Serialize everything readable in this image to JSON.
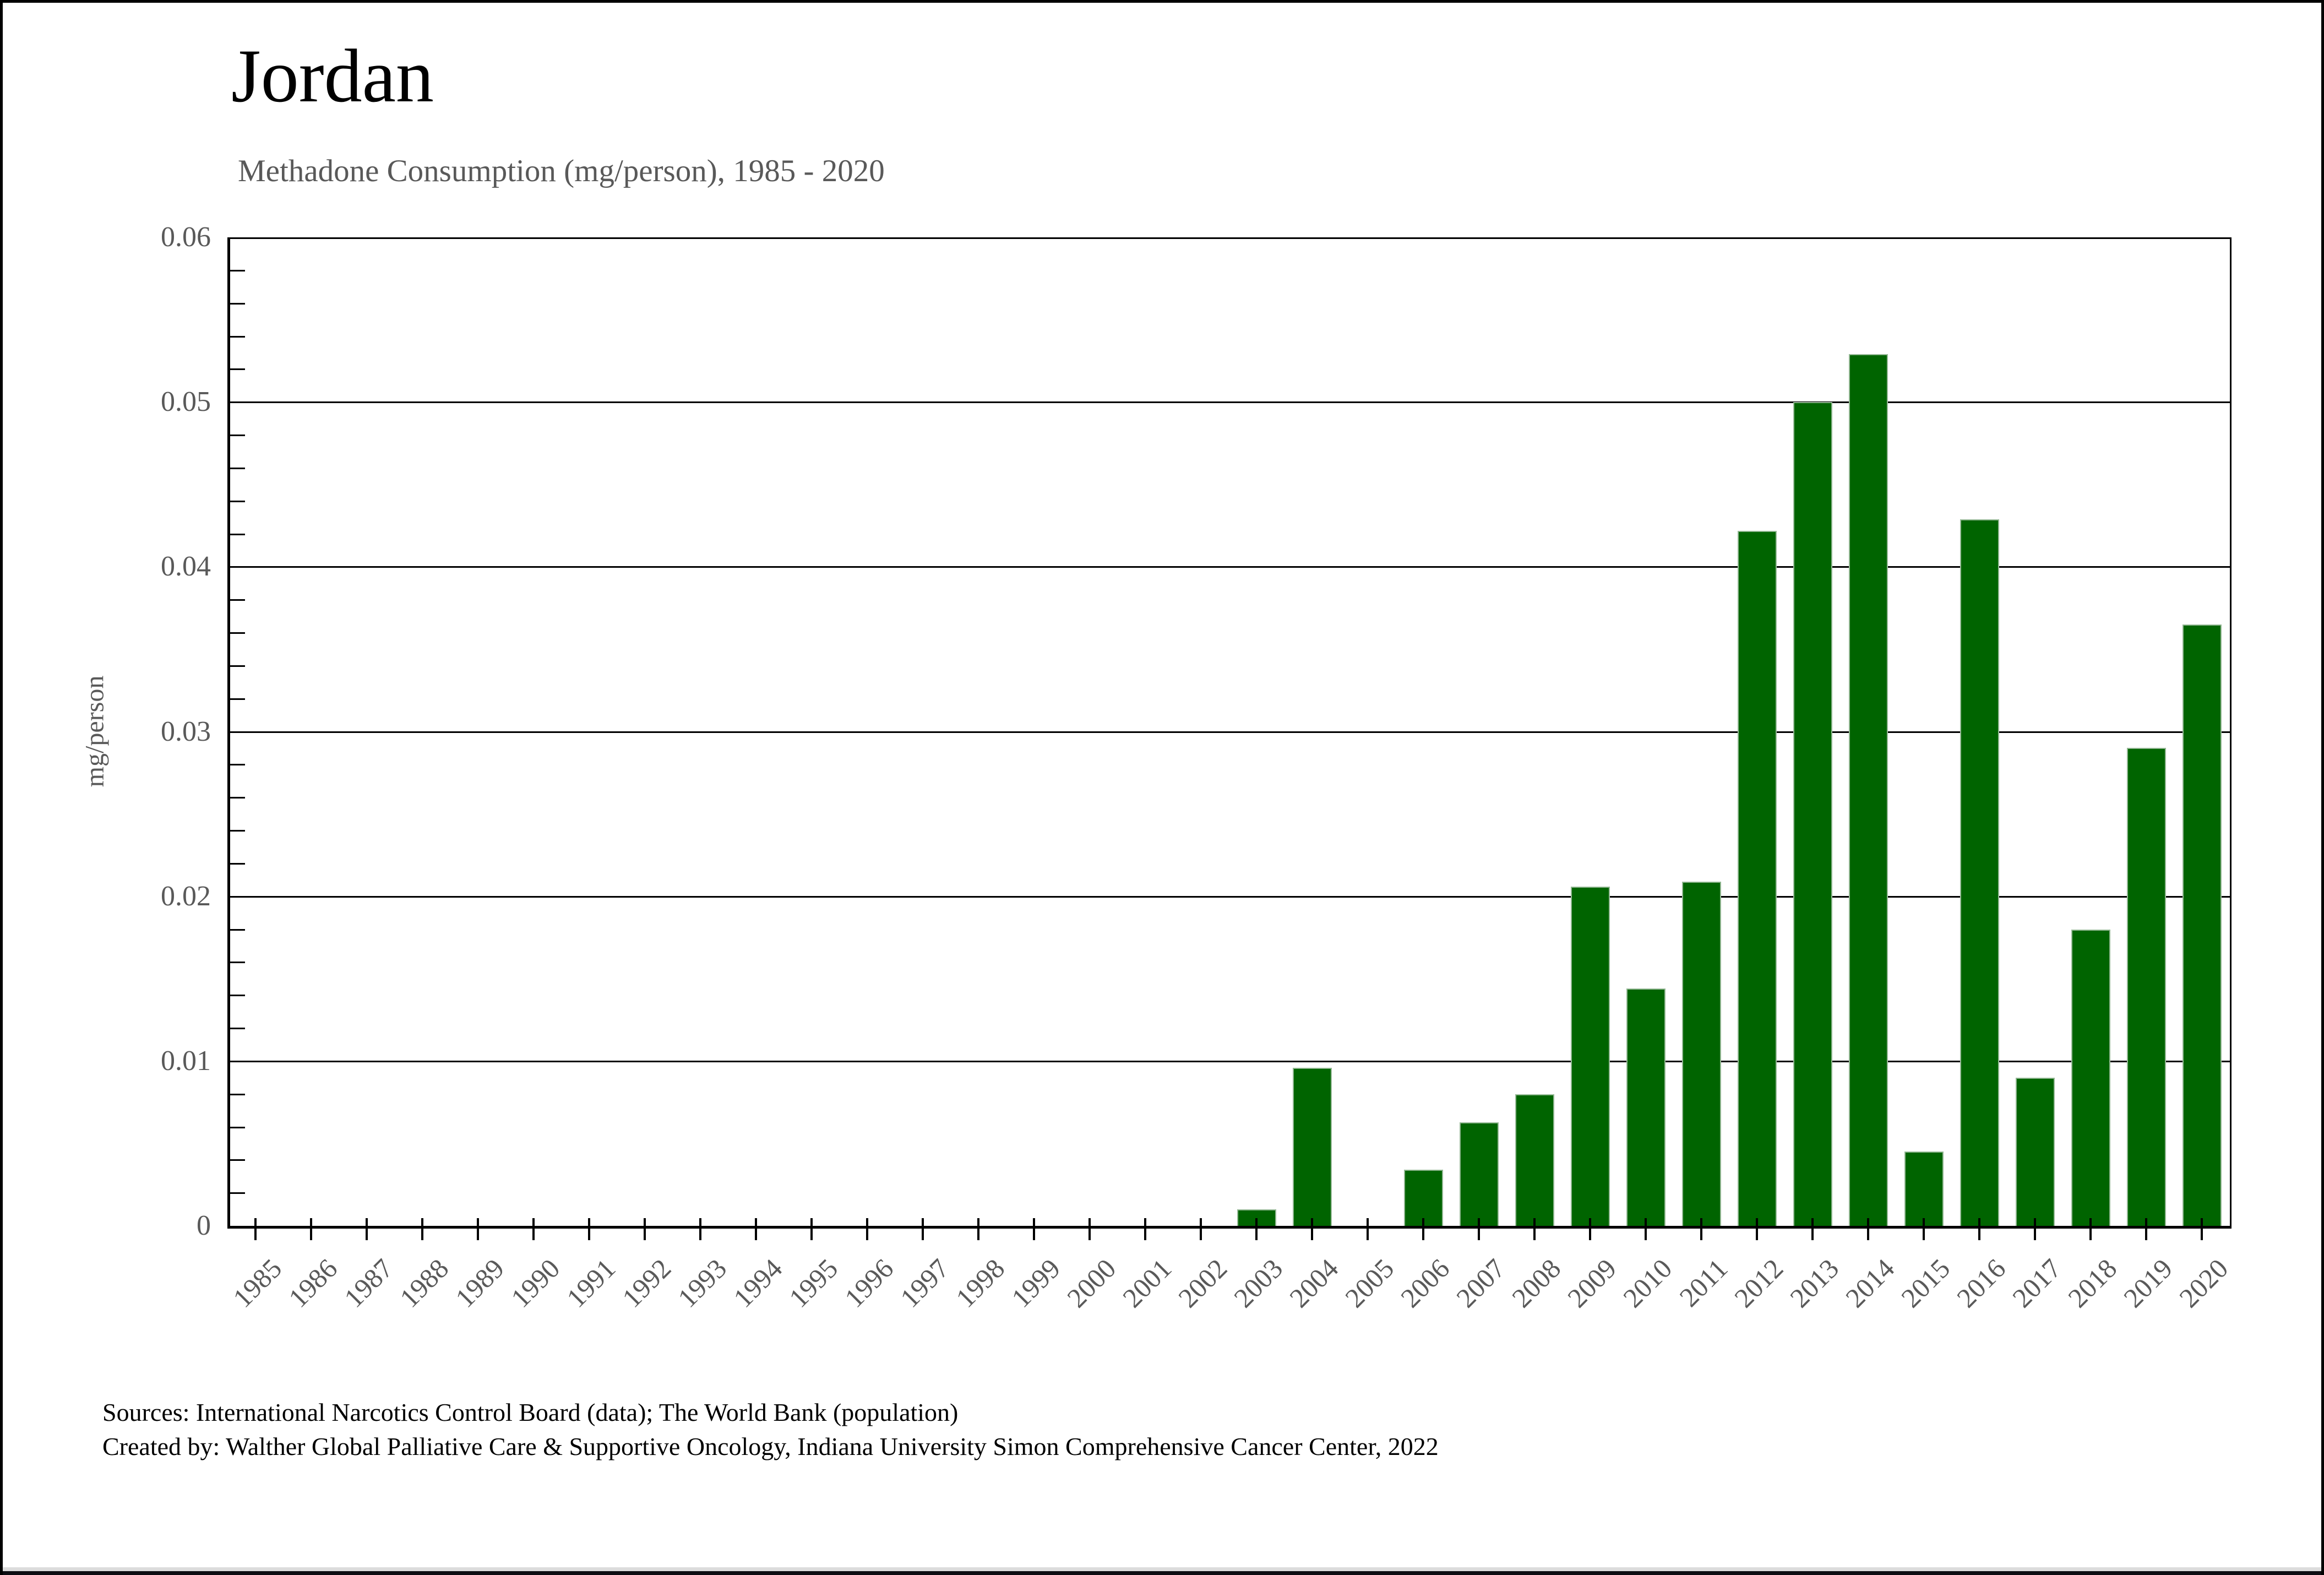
{
  "page": {
    "title": "Jordan",
    "subtitle": "Methadone Consumption (mg/person), 1985 - 2020",
    "source_line1": "Sources: International Narcotics Control Board (data); The World Bank (population)",
    "source_line2": "Created by: Walther Global Palliative Care & Supportive Oncology, Indiana University Simon Comprehensive Cancer Center, 2022"
  },
  "chart_data": {
    "type": "bar",
    "title": "Jordan",
    "subtitle": "Methadone Consumption (mg/person), 1985 - 2020",
    "xlabel": "",
    "ylabel": "mg/person",
    "ylim": [
      0,
      0.06
    ],
    "ytick_values": [
      0,
      0.01,
      0.02,
      0.03,
      0.04,
      0.05,
      0.06
    ],
    "ytick_labels": [
      "0",
      "0.01",
      "0.02",
      "0.03",
      "0.04",
      "0.05",
      "0.06"
    ],
    "y_minor_tick_step": 0.002,
    "grid": "horizontal major gridlines, black, drawn behind bars",
    "legend": "none",
    "bar_color": "#006400",
    "bar_edge_color": "#94b894",
    "categories": [
      1985,
      1986,
      1987,
      1988,
      1989,
      1990,
      1991,
      1992,
      1993,
      1994,
      1995,
      1996,
      1997,
      1998,
      1999,
      2000,
      2001,
      2002,
      2003,
      2004,
      2005,
      2006,
      2007,
      2008,
      2009,
      2010,
      2011,
      2012,
      2013,
      2014,
      2015,
      2016,
      2017,
      2018,
      2019,
      2020
    ],
    "values": [
      0,
      0,
      0,
      0,
      0,
      0,
      0,
      0,
      0,
      0,
      0,
      0,
      0,
      0,
      0,
      0,
      0,
      0,
      0.001,
      0.0096,
      0,
      0.0034,
      0.0063,
      0.008,
      0.0206,
      0.0144,
      0.0209,
      0.0422,
      0.05,
      0.0529,
      0.0045,
      0.0429,
      0.009,
      0.018,
      0.029,
      0.0365
    ]
  }
}
